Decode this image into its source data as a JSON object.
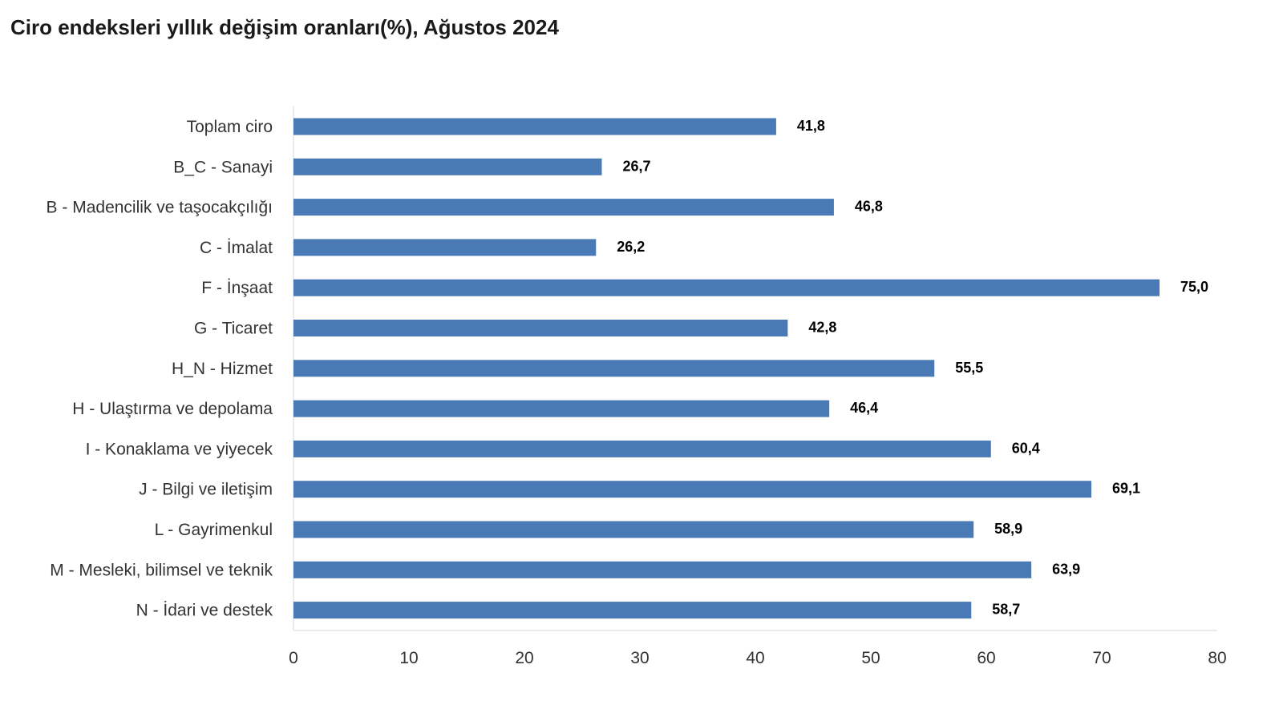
{
  "chart_data": {
    "type": "bar",
    "orientation": "horizontal",
    "title": "Ciro endeksleri yıllık değişim oranları(%), Ağustos 2024",
    "xlabel": "",
    "ylabel": "",
    "categories": [
      "Toplam ciro",
      "B_C - Sanayi",
      "B - Madencilik ve taşocakçılığı",
      "C - İmalat",
      "F - İnşaat",
      "G - Ticaret",
      "H_N - Hizmet",
      "H - Ulaştırma ve depolama",
      "I - Konaklama ve yiyecek",
      "J - Bilgi ve iletişim",
      "L - Gayrimenkul",
      "M - Mesleki, bilimsel ve teknik",
      "N - İdari ve destek"
    ],
    "values": [
      41.8,
      26.7,
      46.8,
      26.2,
      75.0,
      42.8,
      55.5,
      46.4,
      60.4,
      69.1,
      58.9,
      63.9,
      58.7
    ],
    "value_labels": [
      "41,8",
      "26,7",
      "46,8",
      "26,2",
      "75,0",
      "42,8",
      "55,5",
      "46,4",
      "60,4",
      "69,1",
      "58,9",
      "63,9",
      "58,7"
    ],
    "xlim": [
      0,
      80
    ],
    "xticks": [
      0,
      10,
      20,
      30,
      40,
      50,
      60,
      70,
      80
    ],
    "grid": false,
    "legend": "none",
    "bar_color": "#4a7ab5"
  }
}
